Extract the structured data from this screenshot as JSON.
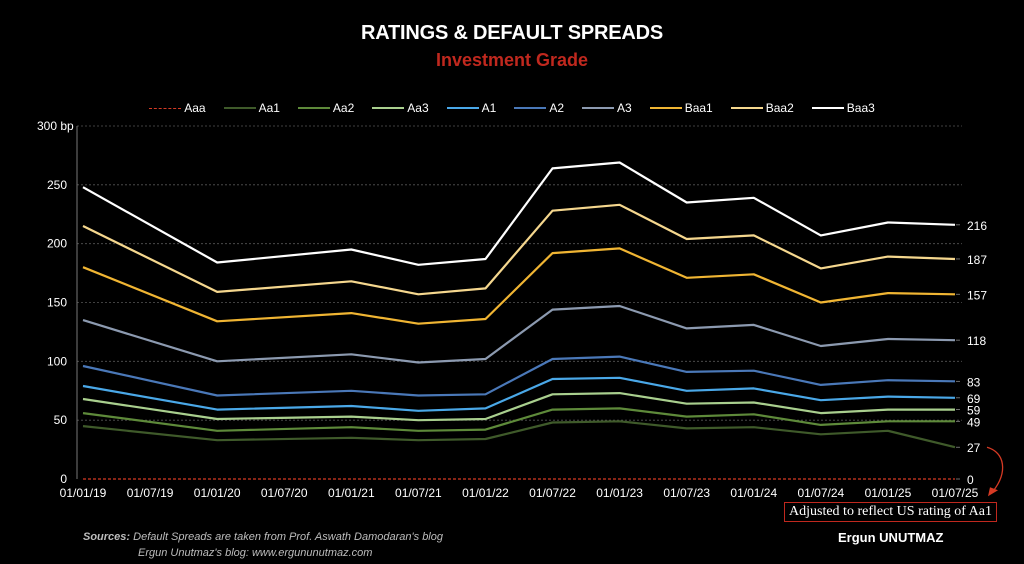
{
  "header": {
    "title": "RATINGS & DEFAULT SPREADS",
    "subtitle": "Investment Grade"
  },
  "footer": {
    "sources_label": "Sources:",
    "sources_text": "Default Spreads are taken from Prof. Aswath Damodaran's blog",
    "blog_text": "Ergun Unutmaz's blog: www.ergununutmaz.com",
    "note": "Adjusted to reflect US rating of Aa1",
    "author": "Ergun UNUTMAZ"
  },
  "colors": {
    "background": "#000000",
    "title": "#ffffff",
    "subtitle": "#c0281e",
    "gridline": "#555555",
    "annotation": "#d63a24"
  },
  "chart_data": {
    "type": "line",
    "title": "RATINGS & DEFAULT SPREADS",
    "subtitle": "Investment Grade",
    "xlabel": "",
    "ylabel": "bp",
    "ylim": [
      0,
      300
    ],
    "yticks": [
      0,
      50,
      100,
      150,
      200,
      250,
      300
    ],
    "ytick_labels": [
      "0",
      "50",
      "100",
      "150",
      "200",
      "250",
      "300 bp"
    ],
    "grid": true,
    "legend_position": "top",
    "x_ticks": [
      "01/01/19",
      "01/07/19",
      "01/01/20",
      "01/07/20",
      "01/01/21",
      "01/07/21",
      "01/01/22",
      "01/07/22",
      "01/01/23",
      "01/07/23",
      "01/01/24",
      "01/07/24",
      "01/01/25",
      "01/07/25"
    ],
    "x_points": [
      "01/01/19",
      "01/01/20",
      "01/01/21",
      "01/07/21",
      "01/01/22",
      "01/07/22",
      "01/01/23",
      "01/07/23",
      "01/01/24",
      "01/07/24",
      "01/01/25",
      "01/07/25"
    ],
    "series": [
      {
        "name": "Aaa",
        "color": "#d63a24",
        "dashed": true,
        "values": [
          0,
          0,
          0,
          0,
          0,
          0,
          0,
          0,
          0,
          0,
          0,
          0
        ],
        "end_label": "0"
      },
      {
        "name": "Aa1",
        "color": "#3f5a2a",
        "dashed": false,
        "values": [
          45,
          33,
          35,
          33,
          34,
          48,
          49,
          43,
          44,
          38,
          41,
          27
        ],
        "end_label": "27"
      },
      {
        "name": "Aa2",
        "color": "#5e8a3a",
        "dashed": false,
        "values": [
          56,
          41,
          44,
          41,
          42,
          59,
          60,
          53,
          55,
          46,
          49,
          49
        ],
        "end_label": "49"
      },
      {
        "name": "Aa3",
        "color": "#a9cf8e",
        "dashed": false,
        "values": [
          68,
          51,
          53,
          50,
          51,
          72,
          73,
          64,
          65,
          56,
          59,
          59
        ],
        "end_label": "59"
      },
      {
        "name": "A1",
        "color": "#4aa8e8",
        "dashed": false,
        "values": [
          79,
          59,
          62,
          58,
          60,
          85,
          86,
          75,
          77,
          67,
          70,
          69
        ],
        "end_label": "69"
      },
      {
        "name": "A2",
        "color": "#4a78b8",
        "dashed": false,
        "values": [
          96,
          71,
          75,
          71,
          72,
          102,
          104,
          91,
          92,
          80,
          84,
          83
        ],
        "end_label": "83"
      },
      {
        "name": "A3",
        "color": "#8c9ab0",
        "dashed": false,
        "values": [
          135,
          100,
          106,
          99,
          102,
          144,
          147,
          128,
          131,
          113,
          119,
          118
        ],
        "end_label": "118"
      },
      {
        "name": "Baa1",
        "color": "#f0b533",
        "dashed": false,
        "values": [
          180,
          134,
          141,
          132,
          136,
          192,
          196,
          171,
          174,
          150,
          158,
          157
        ],
        "end_label": "157"
      },
      {
        "name": "Baa2",
        "color": "#f5d78e",
        "dashed": false,
        "values": [
          215,
          159,
          168,
          157,
          162,
          228,
          233,
          204,
          207,
          179,
          189,
          187
        ],
        "end_label": "187"
      },
      {
        "name": "Baa3",
        "color": "#ffffff",
        "dashed": false,
        "values": [
          248,
          184,
          195,
          182,
          187,
          264,
          269,
          235,
          239,
          207,
          218,
          216
        ],
        "end_label": "216"
      }
    ],
    "annotations": [
      {
        "text": "Adjusted to reflect US rating of Aa1",
        "target_series": "Aa1",
        "target_x": "01/07/25"
      }
    ]
  }
}
